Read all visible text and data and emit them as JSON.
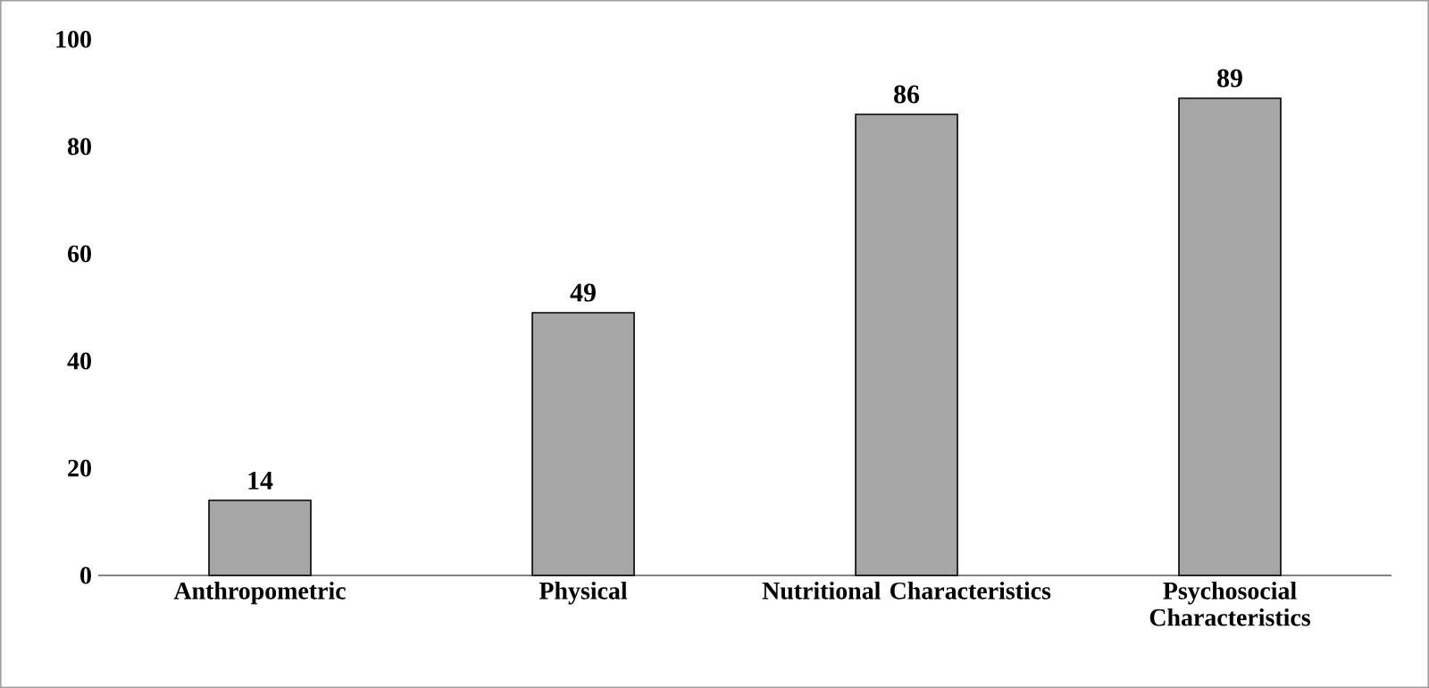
{
  "chart_data": {
    "type": "bar",
    "categories": [
      "Anthropometric",
      "Physical",
      "Nutritional Characteristics",
      "Psychosocial Characteristics"
    ],
    "values": [
      14,
      49,
      86,
      89
    ],
    "color": "#a6a6a6",
    "ylim": [
      0,
      100
    ],
    "yticks": [
      0,
      20,
      40,
      60,
      80,
      100
    ],
    "data_labels": true
  }
}
